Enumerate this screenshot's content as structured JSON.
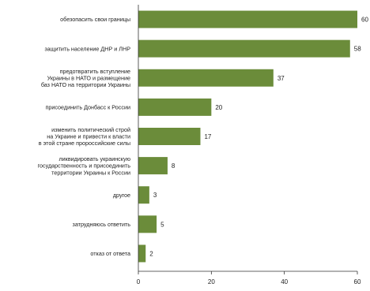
{
  "chart_data": {
    "type": "bar",
    "orientation": "horizontal",
    "categories": [
      [
        "обезопасить свои границы"
      ],
      [
        "защитить население ДНР и ЛНР"
      ],
      [
        "предотвратить вступление",
        "Украины в НАТО и размещение",
        "баз НАТО на территории Украины"
      ],
      [
        "присоединить Донбасс к России"
      ],
      [
        "изменить политический строй",
        "на Украине и привести к власти",
        "в этой стране пророссийские силы"
      ],
      [
        "ликвидировать украинскую",
        "государственность и присоединить",
        "территории Украины к России"
      ],
      [
        "другое"
      ],
      [
        "затрудняюсь ответить"
      ],
      [
        "отказ от ответа"
      ]
    ],
    "values": [
      60,
      58,
      37,
      20,
      17,
      8,
      3,
      5,
      2
    ],
    "x_ticks": [
      0,
      20,
      40,
      60
    ],
    "xlim": [
      0,
      60
    ],
    "bar_color": "#6b8c3a",
    "grid": false,
    "title": "",
    "xlabel": "",
    "ylabel": ""
  }
}
